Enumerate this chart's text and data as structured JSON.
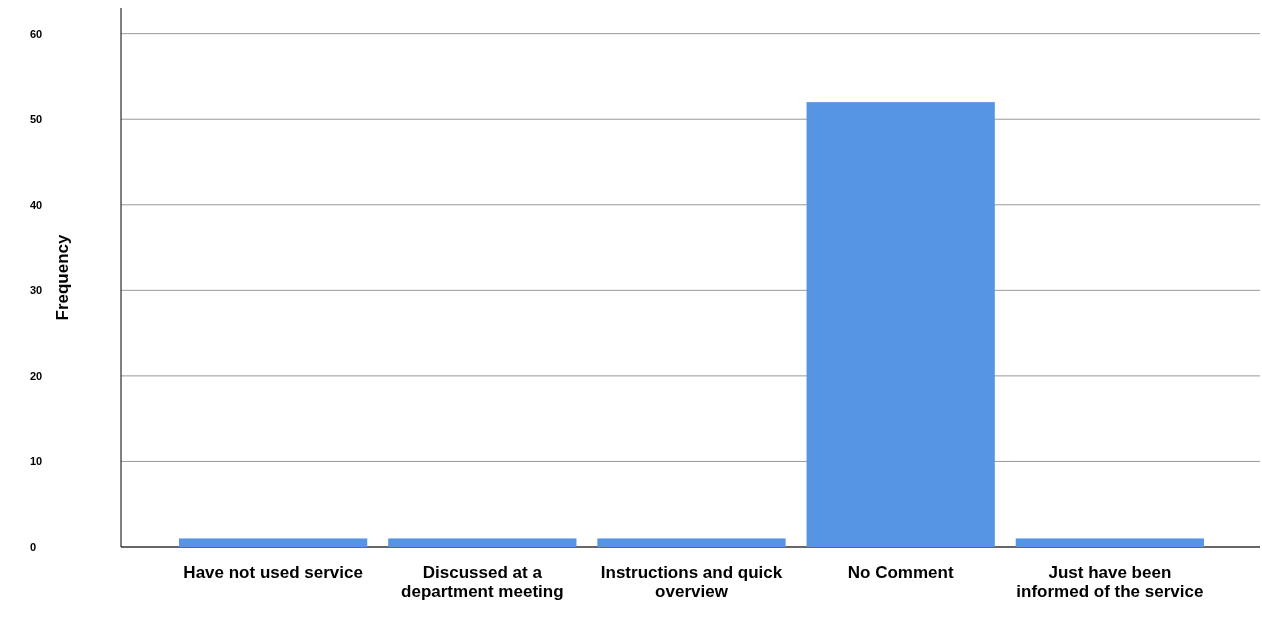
{
  "chart_data": {
    "type": "bar",
    "ylabel": "Frequency",
    "categories": [
      "Have not used service",
      "Discussed at a department meeting",
      "Instructions and quick overview",
      "No Comment",
      "Just have been informed of the service"
    ],
    "values": [
      1,
      1,
      1,
      52,
      1
    ],
    "color": "#5595e3",
    "ylim": [
      0,
      63
    ],
    "yticks": [
      0,
      10,
      20,
      30,
      40,
      50,
      60
    ],
    "grid": "y"
  }
}
